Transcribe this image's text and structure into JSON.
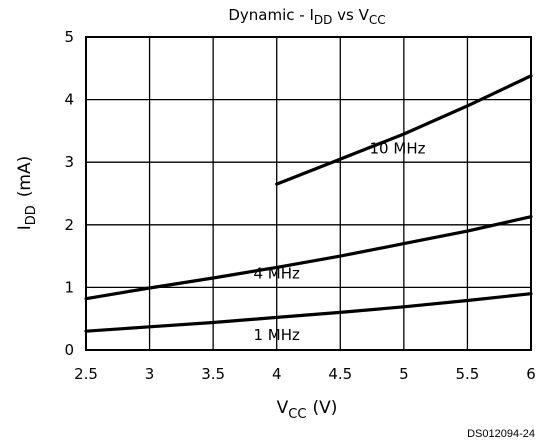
{
  "chart_data": {
    "type": "line",
    "title": {
      "main": "Dynamic - I",
      "main_sub": "DD",
      "mid": " vs V",
      "mid_sub": "CC"
    },
    "xlabel": {
      "main": "V",
      "sub": "CC",
      "unit": "(V)"
    },
    "ylabel": {
      "main": "I",
      "sub": "DD",
      "unit": "(mA)"
    },
    "xlim": [
      2.5,
      6
    ],
    "ylim": [
      0,
      5
    ],
    "xticks": [
      "2.5",
      "3",
      "3.5",
      "4",
      "4.5",
      "5",
      "5.5",
      "6"
    ],
    "yticks": [
      "0",
      "1",
      "2",
      "3",
      "4",
      "5"
    ],
    "grid": true,
    "series": [
      {
        "name": "10 MHz",
        "x": [
          4.0,
          4.5,
          5.0,
          5.5,
          6.0
        ],
        "y": [
          2.65,
          3.05,
          3.45,
          3.9,
          4.38
        ]
      },
      {
        "name": "4 MHz",
        "x": [
          2.5,
          3.0,
          3.5,
          4.0,
          4.5,
          5.0,
          5.5,
          6.0
        ],
        "y": [
          0.82,
          0.99,
          1.15,
          1.32,
          1.5,
          1.7,
          1.9,
          2.13
        ]
      },
      {
        "name": "1 MHz",
        "x": [
          2.5,
          3.0,
          3.5,
          4.0,
          4.5,
          5.0,
          5.5,
          6.0
        ],
        "y": [
          0.3,
          0.37,
          0.44,
          0.52,
          0.6,
          0.69,
          0.79,
          0.9
        ]
      }
    ],
    "series_label_positions": [
      {
        "x": 4.95,
        "y": 3.22
      },
      {
        "x": 4.0,
        "y": 1.22
      },
      {
        "x": 4.0,
        "y": 0.24
      }
    ]
  },
  "figure_code": "DS012094-24"
}
